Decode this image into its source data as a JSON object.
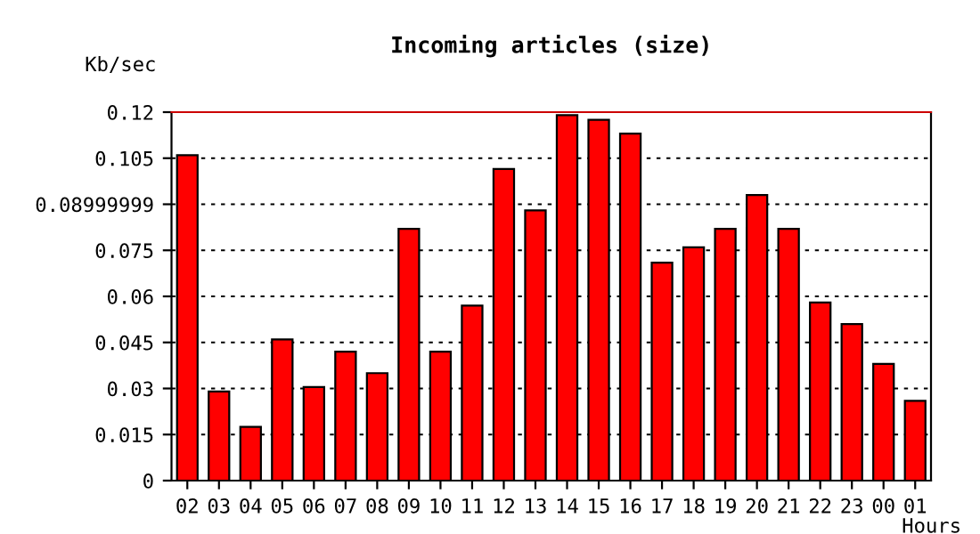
{
  "chart_data": {
    "type": "bar",
    "title": "Incoming articles (size)",
    "xlabel": "Hours",
    "ylabel": "Kb/sec",
    "categories": [
      "02",
      "03",
      "04",
      "05",
      "06",
      "07",
      "08",
      "09",
      "10",
      "11",
      "12",
      "13",
      "14",
      "15",
      "16",
      "17",
      "18",
      "19",
      "20",
      "21",
      "22",
      "23",
      "00",
      "01"
    ],
    "values": [
      0.106,
      0.029,
      0.0175,
      0.046,
      0.0305,
      0.042,
      0.035,
      0.082,
      0.042,
      0.057,
      0.1015,
      0.088,
      0.119,
      0.1175,
      0.113,
      0.071,
      0.076,
      0.082,
      0.093,
      0.082,
      0.058,
      0.051,
      0.038,
      0.026
    ],
    "color": "#ff0000",
    "ylim": [
      0,
      0.12
    ],
    "yticks": [
      0,
      0.015,
      0.03,
      0.045,
      0.06,
      0.075,
      0.08999999,
      0.105,
      0.12
    ],
    "grid": "y"
  }
}
